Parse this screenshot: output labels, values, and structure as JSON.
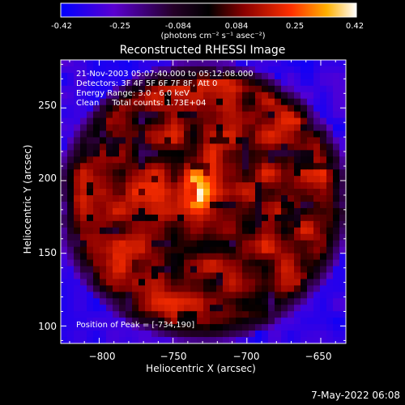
{
  "colorbar": {
    "ticks": [
      "-0.42",
      "-0.25",
      "-0.084",
      "0.084",
      "0.25",
      "0.42"
    ],
    "units": "(photons cm⁻² s⁻¹ asec⁻²)",
    "range": [
      -0.42,
      0.42
    ]
  },
  "title": "Reconstructed RHESSI Image",
  "info": {
    "time": "21-Nov-2003 05:07:40.000 to 05:12:08.000",
    "detectors": "Detectors: 3F 4F 5F 6F 7F 8F, Att 0",
    "energy": "Energy Range: 3.0 - 6.0 keV",
    "method_counts": "Clean     Total counts: 1.73E+04"
  },
  "axes": {
    "x_label": "Heliocentric X (arcsec)",
    "y_label": "Heliocentric Y (arcsec)",
    "x_ticks": [
      "−800",
      "−750",
      "−700",
      "−650"
    ],
    "y_ticks": [
      "250",
      "200",
      "150",
      "100"
    ],
    "x_range": [
      -826,
      -633
    ],
    "y_range": [
      88,
      283
    ]
  },
  "peak": {
    "label": "Position of Peak = [-734,190]",
    "x": -734,
    "y": 190
  },
  "footer": "7-May-2022 06:08",
  "colors": {
    "colormap": [
      "#0000ff",
      "#5a00c8",
      "#230028",
      "#000000",
      "#7a0000",
      "#ff2000",
      "#ffa000",
      "#ffffff"
    ]
  }
}
